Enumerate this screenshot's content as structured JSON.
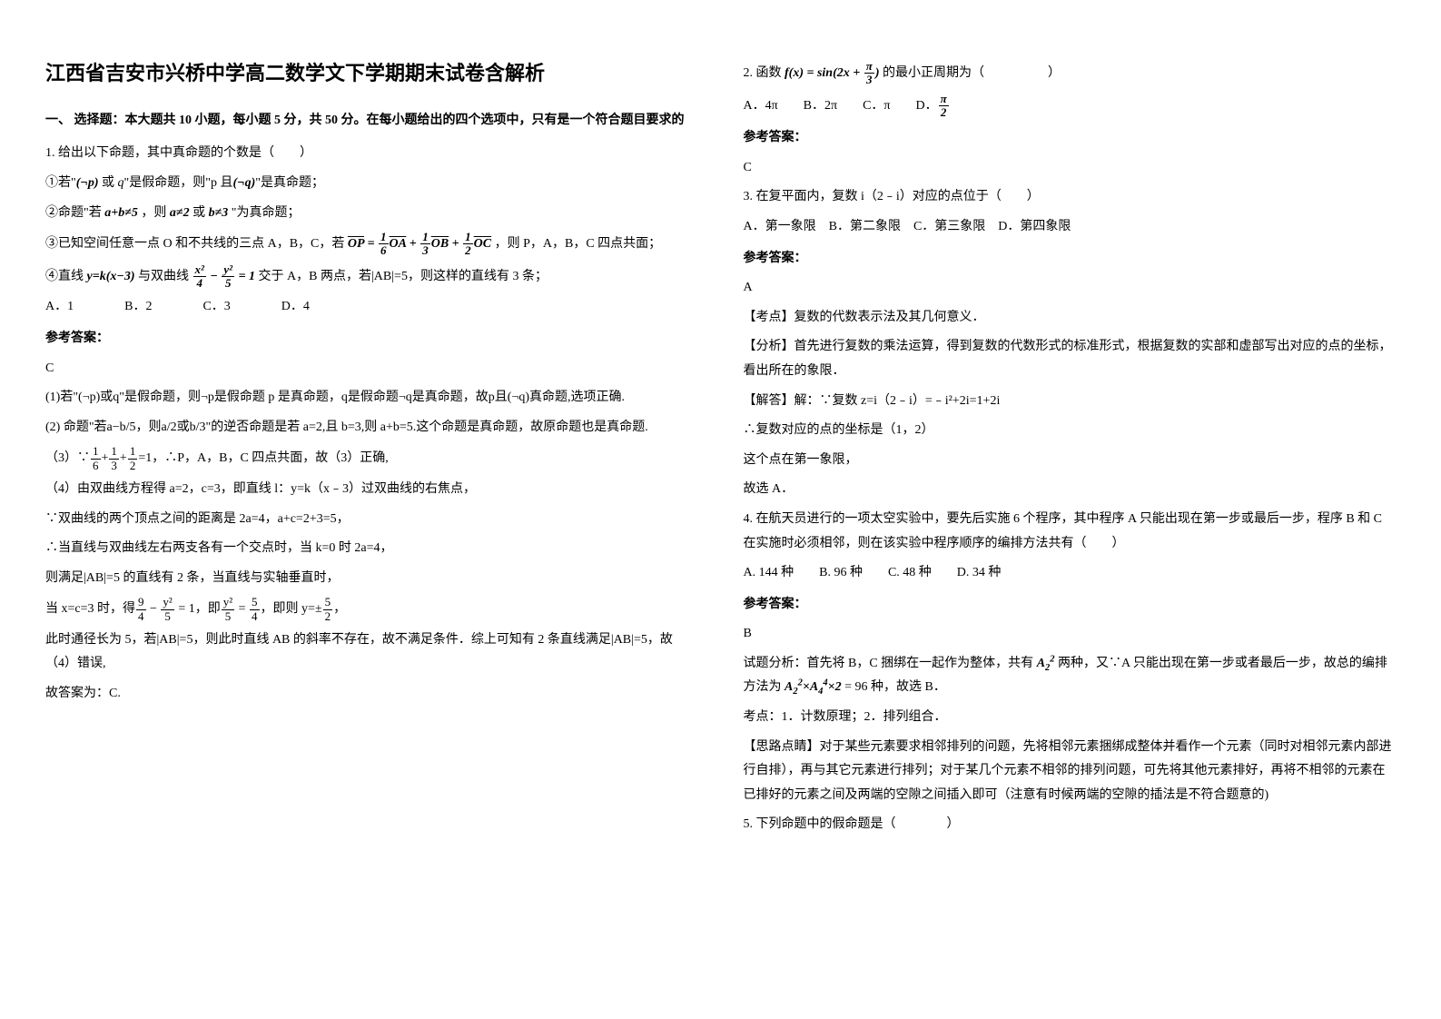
{
  "title": "江西省吉安市兴桥中学高二数学文下学期期末试卷含解析",
  "section1_heading": "一、 选择题：本大题共 10 小题，每小题 5 分，共 50 分。在每小题给出的四个选项中，只有是一个符合题目要求的",
  "q1": {
    "stem": "1. 给出以下命题，其中真命题的个数是（　　）",
    "line1_pre": "①若\"",
    "line1_post": "\"是假命题，则\"p 且",
    "line1_end": "\"是真命题；",
    "line2": "②命题\"若 a+b≠5 ，则 a≠2 或 b≠3 \"为真命题；",
    "line3_pre": "③已知空间任意一点 O 和不共线的三点 A，B，C，若",
    "line3_post": "，则 P，A，B，C 四点共面；",
    "line4_pre": "④直线 y=k(x−3) 与双曲线",
    "line4_post": "交于 A，B 两点，若|AB|=5，则这样的直线有 3 条；",
    "options": "A．1　　　　B．2　　　　C．3　　　　D．4",
    "answer_label": "参考答案：",
    "answer": "C",
    "exp1": "(1)若\"(¬p)或q\"是假命题，则¬p是假命题 p 是真命题，q是假命题¬q是真命题，故p且(¬q)真命题,选项正确.",
    "exp2": "(2) 命题\"若a−b/5，则a/2或b/3\"的逆否命题是若 a=2,且 b=3,则 a+b=5.这个命题是真命题，故原命题也是真命题.",
    "exp3_pre": "（3）∵",
    "exp3_post": "=1，∴P，A，B，C 四点共面，故（3）正确,",
    "exp4": "（4）由双曲线方程得 a=2，c=3，即直线 l：y=k（x﹣3）过双曲线的右焦点，",
    "exp5": "∵双曲线的两个顶点之间的距离是 2a=4，a+c=2+3=5，",
    "exp6": "∴当直线与双曲线左右两支各有一个交点时，当 k=0 时 2a=4，",
    "exp7": "则满足|AB|=5 的直线有 2 条，当直线与实轴垂直时，",
    "exp8_pre": "当 x=c=3 时，得",
    "exp8_mid": "，即",
    "exp8_post": "，即则 y=±",
    "exp8_end": "，",
    "exp9": "此时通径长为 5，若|AB|=5，则此时直线 AB 的斜率不存在，故不满足条件．综上可知有 2 条直线满足|AB|=5，故（4）错误,",
    "exp10": "故答案为：C."
  },
  "q2": {
    "stem_pre": "2. 函数",
    "stem_post": "的最小正周期为（　　　　　）",
    "options_pre": "A．4π　　B．2π　　C．π　　D．",
    "answer_label": "参考答案：",
    "answer": "C"
  },
  "q3": {
    "stem": "3. 在复平面内，复数 i（2﹣i）对应的点位于（　　）",
    "options": "A．第一象限　B．第二象限　C．第三象限　D．第四象限",
    "answer_label": "参考答案：",
    "answer": "A",
    "exp1": "【考点】复数的代数表示法及其几何意义．",
    "exp2": "【分析】首先进行复数的乘法运算，得到复数的代数形式的标准形式，根据复数的实部和虚部写出对应的点的坐标，看出所在的象限．",
    "exp3": "【解答】解：∵复数 z=i（2﹣i）=﹣i²+2i=1+2i",
    "exp4": "∴复数对应的点的坐标是（1，2）",
    "exp5": "这个点在第一象限，",
    "exp6": "故选 A．"
  },
  "q4": {
    "stem": "4. 在航天员进行的一项太空实验中，要先后实施 6 个程序，其中程序 A 只能出现在第一步或最后一步，程序 B 和 C 在实施时必须相邻，则在该实验中程序顺序的编排方法共有（　　）",
    "options": "A. 144 种　　B. 96 种　　C. 48 种　　D. 34 种",
    "answer_label": "参考答案：",
    "answer": "B",
    "exp1_pre": "试题分析：首先将 B，C 捆绑在一起作为整体，共有",
    "exp1_mid": "两种，又∵A 只能出现在第一步或者最后一步，故总的编排方法为",
    "exp1_post": "= 96 种，故选 B．",
    "exp2": "考点：1．计数原理；2．排列组合．",
    "exp3": "【思路点睛】对于某些元素要求相邻排列的问题，先将相邻元素捆绑成整体并看作一个元素（同时对相邻元素内部进行自排），再与其它元素进行排列；对于某几个元素不相邻的排列问题，可先将其他元素排好，再将不相邻的元素在已排好的元素之间及两端的空隙之间插入即可（注意有时候两端的空隙的插法是不符合题意的)"
  },
  "q5": {
    "stem": "5. 下列命题中的假命题是（　　　　）"
  }
}
